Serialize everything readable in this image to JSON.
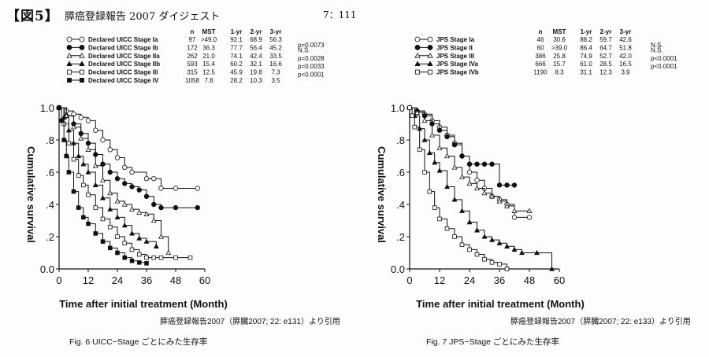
{
  "header": {
    "figure_label": "【図5】",
    "title": "膵癌登録報告 2007 ダイジェスト",
    "page_number": "7：111"
  },
  "chart_data": [
    {
      "type": "line",
      "title": "",
      "xlabel": "Time after initial treatment (Month)",
      "ylabel": "Cumulative survival",
      "xlim": [
        0,
        60
      ],
      "ylim": [
        0,
        1
      ],
      "x_ticks": [
        "0",
        "12",
        "24",
        "36",
        "48",
        "60"
      ],
      "y_ticks": [
        "0.0",
        ".2",
        ".4",
        ".6",
        ".8",
        "1.0"
      ],
      "legend_placement": "top",
      "table_headers": [
        "n",
        "MST",
        "1-yr",
        "2-yr",
        "3-yr"
      ],
      "series": [
        {
          "name": "Declared UICC Stage Ia",
          "marker": "open-circle",
          "n": "97",
          "mst": ">49.0",
          "yr1": "92.1",
          "yr2": "68.9",
          "yr3": "56.3",
          "p": "p=0.0073",
          "x": [
            0,
            3,
            6,
            9,
            12,
            15,
            18,
            21,
            24,
            27,
            30,
            36,
            39,
            42,
            48,
            57
          ],
          "y": [
            1.0,
            0.98,
            0.96,
            0.94,
            0.92,
            0.86,
            0.8,
            0.74,
            0.69,
            0.63,
            0.6,
            0.56,
            0.56,
            0.5,
            0.5,
            0.5
          ]
        },
        {
          "name": "Declared UICC Stage Ib",
          "marker": "filled-circle",
          "n": "172",
          "mst": "36.3",
          "yr1": "77.7",
          "yr2": "56.4",
          "yr3": "45.2",
          "p": "N.S.",
          "x": [
            0,
            3,
            6,
            9,
            12,
            15,
            18,
            21,
            24,
            27,
            30,
            33,
            36,
            39,
            42,
            48,
            57
          ],
          "y": [
            1.0,
            0.95,
            0.9,
            0.84,
            0.78,
            0.71,
            0.65,
            0.6,
            0.56,
            0.53,
            0.51,
            0.49,
            0.45,
            0.4,
            0.38,
            0.38,
            0.38
          ]
        },
        {
          "name": "Declared UICC Stage IIa",
          "marker": "open-triangle",
          "n": "262",
          "mst": "21.0",
          "yr1": "74.1",
          "yr2": "42.4",
          "yr3": "33.5",
          "p": "p=0.0028",
          "x": [
            0,
            3,
            6,
            9,
            12,
            15,
            18,
            21,
            24,
            27,
            30,
            33,
            36,
            39,
            42,
            45
          ],
          "y": [
            1.0,
            0.95,
            0.88,
            0.81,
            0.74,
            0.64,
            0.55,
            0.47,
            0.42,
            0.4,
            0.37,
            0.35,
            0.34,
            0.3,
            0.2,
            0.1
          ]
        },
        {
          "name": "Declared UICC Stage IIb",
          "marker": "filled-triangle",
          "n": "593",
          "mst": "15.4",
          "yr1": "60.2",
          "yr2": "32.1",
          "yr3": "16.6",
          "p": "p=0.0033",
          "x": [
            0,
            2,
            4,
            6,
            8,
            10,
            12,
            15,
            18,
            21,
            24,
            27,
            30,
            33,
            36,
            40
          ],
          "y": [
            1.0,
            0.94,
            0.86,
            0.78,
            0.7,
            0.65,
            0.6,
            0.52,
            0.44,
            0.37,
            0.32,
            0.27,
            0.22,
            0.19,
            0.17,
            0.14
          ]
        },
        {
          "name": "Declared UICC Stage III",
          "marker": "open-square",
          "n": "315",
          "mst": "12.5",
          "yr1": "45.9",
          "yr2": "19.8",
          "yr3": "7.3",
          "p": "p<0.0001",
          "x": [
            0,
            2,
            4,
            6,
            8,
            10,
            12,
            15,
            18,
            21,
            24,
            27,
            30,
            33,
            36,
            39,
            42,
            48,
            54
          ],
          "y": [
            1.0,
            0.9,
            0.78,
            0.68,
            0.58,
            0.52,
            0.46,
            0.38,
            0.31,
            0.26,
            0.2,
            0.16,
            0.12,
            0.09,
            0.07,
            0.07,
            0.07,
            0.07,
            0.07
          ]
        },
        {
          "name": "Declared UICC Stage IV",
          "marker": "filled-square",
          "n": "1058",
          "mst": "7.8",
          "yr1": "28.2",
          "yr2": "10.3",
          "yr3": "3.5",
          "p": "",
          "x": [
            0,
            1,
            2,
            3,
            4,
            6,
            8,
            10,
            12,
            15,
            18,
            21,
            24,
            27,
            30,
            33,
            36
          ],
          "y": [
            1.0,
            0.92,
            0.8,
            0.7,
            0.6,
            0.48,
            0.38,
            0.32,
            0.28,
            0.22,
            0.17,
            0.13,
            0.1,
            0.07,
            0.05,
            0.04,
            0.035
          ]
        }
      ],
      "source": "膵癌登録報告2007（膵臓2007; 22: e131）より引用",
      "caption": "Fig. 6  UICC−Stage ごとにみた生存率"
    },
    {
      "type": "line",
      "title": "",
      "xlabel": "Time after initial treatment (Month)",
      "ylabel": "Cumulative survival",
      "xlim": [
        0,
        60
      ],
      "ylim": [
        0,
        1
      ],
      "x_ticks": [
        "0",
        "12",
        "24",
        "36",
        "48",
        "60"
      ],
      "y_ticks": [
        "0.0",
        ".2",
        ".4",
        ".6",
        ".8",
        "1.0"
      ],
      "legend_placement": "top",
      "table_headers": [
        "n",
        "MST",
        "1-yr",
        "2-yr",
        "3-yr"
      ],
      "series": [
        {
          "name": "JPS Stage Ia",
          "marker": "open-circle",
          "n": "46",
          "mst": "30.6",
          "yr1": "88.2",
          "yr2": "59.7",
          "yr3": "42.6",
          "p": "N.S.",
          "x": [
            0,
            3,
            6,
            9,
            12,
            15,
            18,
            21,
            24,
            27,
            30,
            33,
            36,
            39,
            42,
            48
          ],
          "y": [
            1.0,
            0.98,
            0.96,
            0.92,
            0.88,
            0.83,
            0.78,
            0.7,
            0.6,
            0.55,
            0.5,
            0.45,
            0.43,
            0.4,
            0.32,
            0.32
          ]
        },
        {
          "name": "JPS Stage II",
          "marker": "filled-circle",
          "n": "60",
          "mst": ">39.0",
          "yr1": "86.4",
          "yr2": "64.7",
          "yr3": "51.8",
          "p": "N.S.",
          "x": [
            0,
            3,
            6,
            9,
            12,
            15,
            18,
            21,
            24,
            27,
            30,
            33,
            36,
            39,
            42
          ],
          "y": [
            1.0,
            0.98,
            0.95,
            0.9,
            0.86,
            0.82,
            0.77,
            0.7,
            0.65,
            0.65,
            0.65,
            0.65,
            0.52,
            0.52,
            0.52
          ]
        },
        {
          "name": "JPS Stage III",
          "marker": "open-triangle",
          "n": "386",
          "mst": "25.8",
          "yr1": "74.9",
          "yr2": "52.7",
          "yr3": "42.0",
          "p": "p<0.0001",
          "x": [
            0,
            3,
            6,
            9,
            12,
            15,
            18,
            21,
            24,
            27,
            30,
            33,
            36,
            39,
            42,
            48
          ],
          "y": [
            1.0,
            0.97,
            0.92,
            0.83,
            0.75,
            0.7,
            0.63,
            0.57,
            0.53,
            0.5,
            0.47,
            0.45,
            0.42,
            0.39,
            0.36,
            0.36
          ]
        },
        {
          "name": "JPS Stage IVa",
          "marker": "filled-triangle",
          "n": "666",
          "mst": "15.7",
          "yr1": "61.0",
          "yr2": "28.5",
          "yr3": "16.5",
          "p": "p<0.0001",
          "x": [
            0,
            2,
            4,
            6,
            8,
            10,
            12,
            15,
            18,
            21,
            24,
            27,
            30,
            33,
            36,
            39,
            42,
            45,
            51,
            57
          ],
          "y": [
            1.0,
            0.95,
            0.87,
            0.8,
            0.72,
            0.66,
            0.61,
            0.51,
            0.43,
            0.36,
            0.29,
            0.24,
            0.2,
            0.18,
            0.16,
            0.14,
            0.12,
            0.1,
            0.1,
            0.0
          ]
        },
        {
          "name": "JPS Stage IVb",
          "marker": "open-square",
          "n": "1190",
          "mst": "8.3",
          "yr1": "31.1",
          "yr2": "12.3",
          "yr3": "3.9",
          "p": "",
          "x": [
            0,
            1,
            2,
            4,
            6,
            8,
            10,
            12,
            15,
            18,
            21,
            24,
            27,
            30,
            33,
            36,
            39
          ],
          "y": [
            1.0,
            0.95,
            0.88,
            0.74,
            0.6,
            0.48,
            0.38,
            0.31,
            0.25,
            0.2,
            0.15,
            0.12,
            0.09,
            0.06,
            0.04,
            0.03,
            0.0
          ]
        }
      ],
      "source": "膵癌登録報告2007（膵臓2007; 22: e133）より引用",
      "caption": "Fig. 7  JPS−Stage ごとにみた生存率"
    }
  ]
}
